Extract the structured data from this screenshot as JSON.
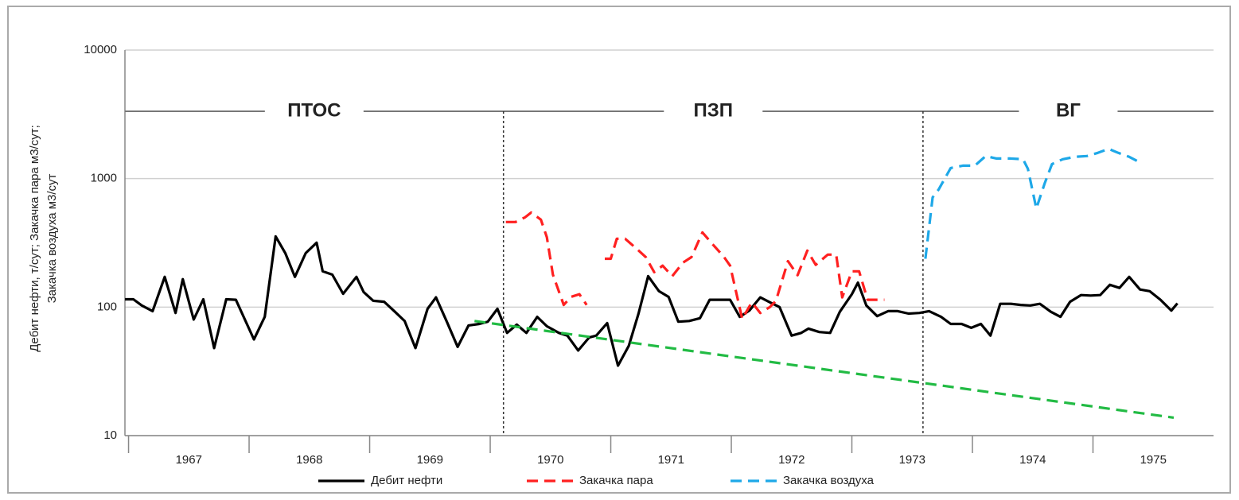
{
  "chart_data": {
    "type": "line",
    "ylabel": [
      "Дебит нефти, т/сут; Закачка пара м3/сут;",
      "Закачка воздуха м3/сут"
    ],
    "log_scale": true,
    "grid": true,
    "ylim": [
      10,
      10000
    ],
    "yticks": [
      10,
      100,
      1000,
      10000
    ],
    "xlim": [
      1966.97,
      1976.0
    ],
    "xticks": [
      1967,
      1968,
      1969,
      1970,
      1971,
      1972,
      1973,
      1974,
      1975
    ],
    "phases": [
      "ПТОС",
      "ПЗП",
      "ВГ"
    ],
    "phase_boundaries": [
      1970.11,
      1973.59
    ],
    "legend": "bottom",
    "series": [
      {
        "name": "Дебит нефти",
        "color": "#000000",
        "dash": "solid",
        "x": [
          1966.97,
          1967.04,
          1967.11,
          1967.2,
          1967.3,
          1967.39,
          1967.45,
          1967.54,
          1967.62,
          1967.71,
          1967.81,
          1967.89,
          1968.04,
          1968.13,
          1968.22,
          1968.3,
          1968.38,
          1968.47,
          1968.56,
          1968.61,
          1968.69,
          1968.78,
          1968.89,
          1968.95,
          1969.03,
          1969.12,
          1969.21,
          1969.29,
          1969.38,
          1969.48,
          1969.55,
          1969.64,
          1969.73,
          1969.82,
          1969.91,
          1969.98,
          1970.06,
          1970.14,
          1970.22,
          1970.3,
          1970.39,
          1970.47,
          1970.57,
          1970.64,
          1970.73,
          1970.82,
          1970.88,
          1970.97,
          1971.06,
          1971.15,
          1971.23,
          1971.31,
          1971.4,
          1971.48,
          1971.56,
          1971.65,
          1971.74,
          1971.82,
          1971.91,
          1971.99,
          1972.07,
          1972.15,
          1972.24,
          1972.32,
          1972.4,
          1972.5,
          1972.58,
          1972.64,
          1972.73,
          1972.82,
          1972.9,
          1973.0,
          1973.05,
          1973.12,
          1973.21,
          1973.3,
          1973.38,
          1973.47,
          1973.56,
          1973.64,
          1973.74,
          1973.82,
          1973.91,
          1973.99,
          1974.07,
          1974.15,
          1974.23,
          1974.32,
          1974.4,
          1974.48,
          1974.56,
          1974.65,
          1974.73,
          1974.81,
          1974.9,
          1974.98,
          1975.06,
          1975.14,
          1975.22,
          1975.3,
          1975.39,
          1975.47,
          1975.56,
          1975.65,
          1975.7
        ],
        "values": [
          115,
          115,
          103,
          93,
          172,
          90,
          165,
          80,
          115,
          48,
          115,
          114,
          56,
          84,
          355,
          263,
          172,
          263,
          317,
          190,
          179,
          127,
          172,
          131,
          112,
          110,
          92,
          78,
          48,
          97,
          119,
          77,
          49,
          72,
          74,
          77,
          97,
          63,
          73,
          63,
          84,
          71,
          63,
          60,
          46,
          58,
          60,
          75,
          35,
          50,
          89,
          174,
          133,
          120,
          77,
          78,
          82,
          114,
          114,
          114,
          84,
          94,
          119,
          109,
          100,
          60,
          63,
          68,
          64,
          63,
          92,
          126,
          155,
          103,
          85,
          93,
          93,
          89,
          90,
          93,
          84,
          74,
          74,
          69,
          74,
          60,
          106,
          106,
          104,
          103,
          106,
          92,
          84,
          110,
          124,
          123,
          124,
          149,
          141,
          172,
          137,
          133,
          114,
          94,
          107
        ]
      },
      {
        "name": "Закачка пара",
        "color": "#ff2020",
        "dash": "dashed",
        "x": [
          1970.13,
          1970.21,
          1970.29,
          1970.34,
          1970.42,
          1970.47,
          1970.52,
          1970.61,
          1970.67,
          1970.74,
          1970.8,
          1970.88,
          1970.95,
          1971.0,
          1971.05,
          1971.12,
          1971.21,
          1971.29,
          1971.36,
          1971.43,
          1971.51,
          1971.6,
          1971.67,
          1971.76,
          1971.84,
          1971.94,
          1971.99,
          1972.09,
          1972.17,
          1972.24,
          1972.32,
          1972.37,
          1972.47,
          1972.55,
          1972.63,
          1972.7,
          1972.8,
          1972.87,
          1972.92,
          1973.0,
          1973.06,
          1973.13,
          1973.2,
          1973.27
        ],
        "values": [
          459,
          459,
          500,
          544,
          479,
          350,
          179,
          104,
          120,
          126,
          104,
          null,
          238,
          238,
          340,
          340,
          287,
          245,
          187,
          210,
          174,
          222,
          245,
          381,
          312,
          245,
          210,
          81,
          109,
          90,
          100,
          112,
          228,
          177,
          275,
          213,
          256,
          256,
          119,
          190,
          190,
          114,
          114,
          114
        ]
      },
      {
        "name": "Закачка воздуха",
        "color": "#1ea8e8",
        "dash": "dashed",
        "x": [
          1973.61,
          1973.67,
          1973.72,
          1973.82,
          1973.92,
          1974.02,
          1974.11,
          1974.2,
          1974.31,
          1974.42,
          1974.46,
          1974.53,
          1974.6,
          1974.66,
          1974.75,
          1974.85,
          1974.95,
          1975.04,
          1975.13,
          1975.21,
          1975.3,
          1975.39
        ],
        "values": [
          238,
          714,
          823,
          1208,
          1260,
          1260,
          1497,
          1434,
          1434,
          1414,
          1192,
          585,
          922,
          1297,
          1414,
          1476,
          1497,
          1585,
          1702,
          1585,
          1476,
          1335
        ]
      },
      {
        "color": "#22bb44",
        "dash": "dashed",
        "x": [
          1969.87,
          1975.67
        ],
        "values": [
          78,
          13.8
        ]
      }
    ]
  }
}
